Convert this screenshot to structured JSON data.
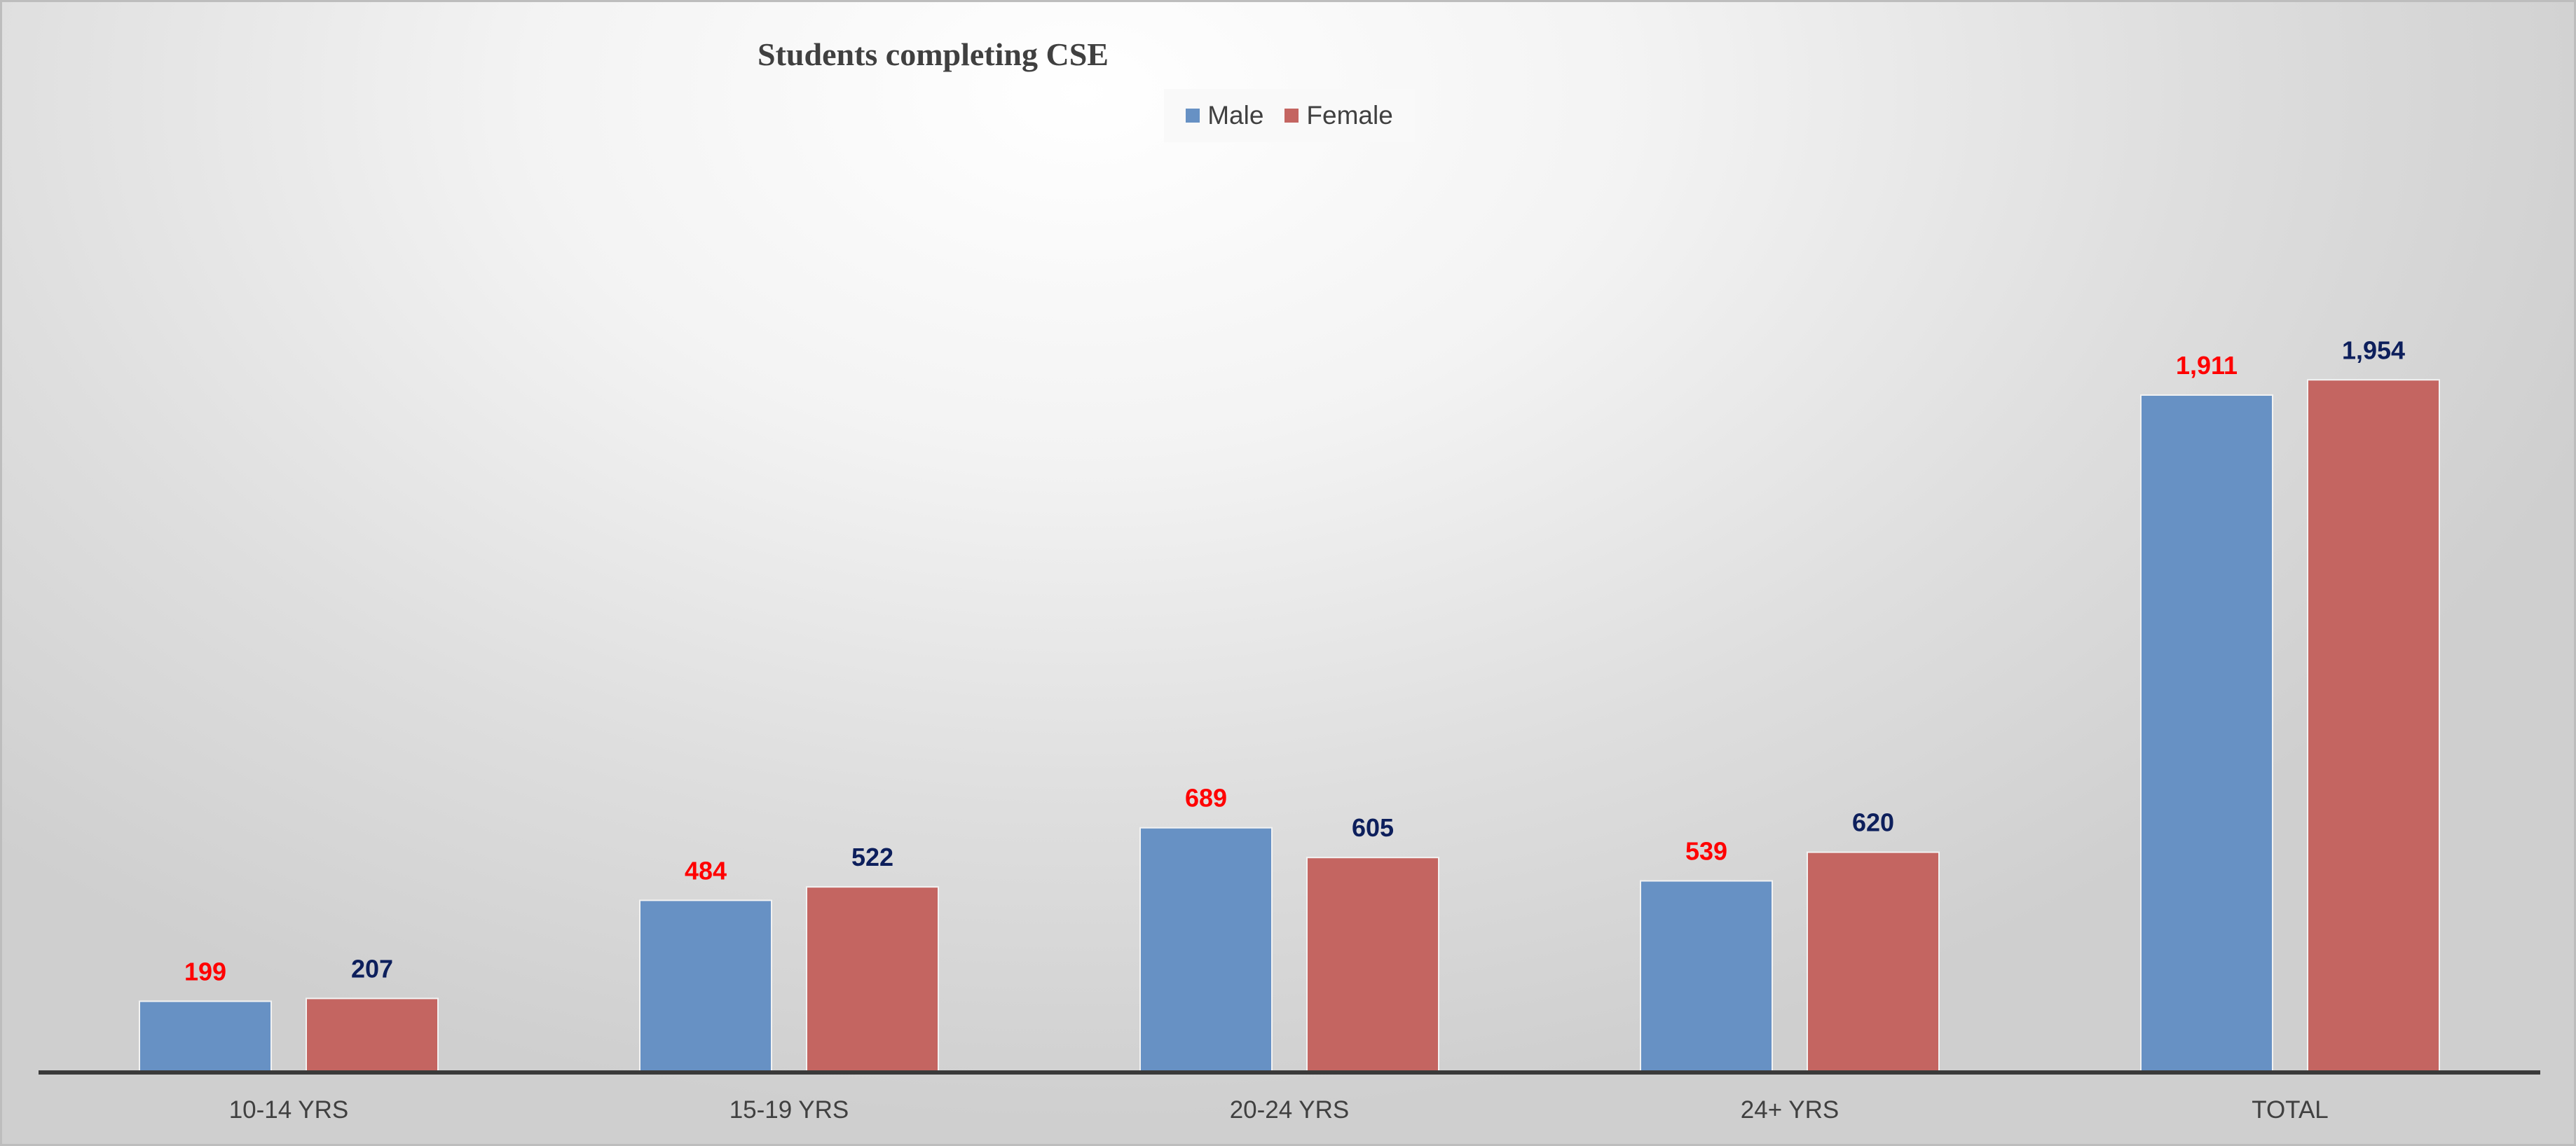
{
  "colors": {
    "male": "#6791c4",
    "female": "#c46561",
    "male_label": "#ff0000",
    "female_label": "#0d1f5c",
    "axis": "#3a3a3a",
    "tick_text": "#404040"
  },
  "legend": {
    "male": "Male",
    "female": "Female"
  },
  "chart_data": {
    "type": "bar",
    "title": "Students completing CSE",
    "xlabel": "",
    "ylabel": "",
    "categories": [
      "10-14 YRS",
      "15-19 YRS",
      "20-24 YRS",
      "24+ YRS",
      "TOTAL"
    ],
    "series": [
      {
        "name": "Male",
        "values": [
          199,
          484,
          689,
          539,
          1911
        ],
        "labels": [
          "199",
          "484",
          "689",
          "539",
          "1,911"
        ]
      },
      {
        "name": "Female",
        "values": [
          207,
          522,
          605,
          620,
          1954
        ],
        "labels": [
          "207",
          "522",
          "605",
          "620",
          "1,954"
        ]
      }
    ],
    "ylim": [
      0,
      2200
    ],
    "grid": false,
    "legend_position": "top"
  }
}
